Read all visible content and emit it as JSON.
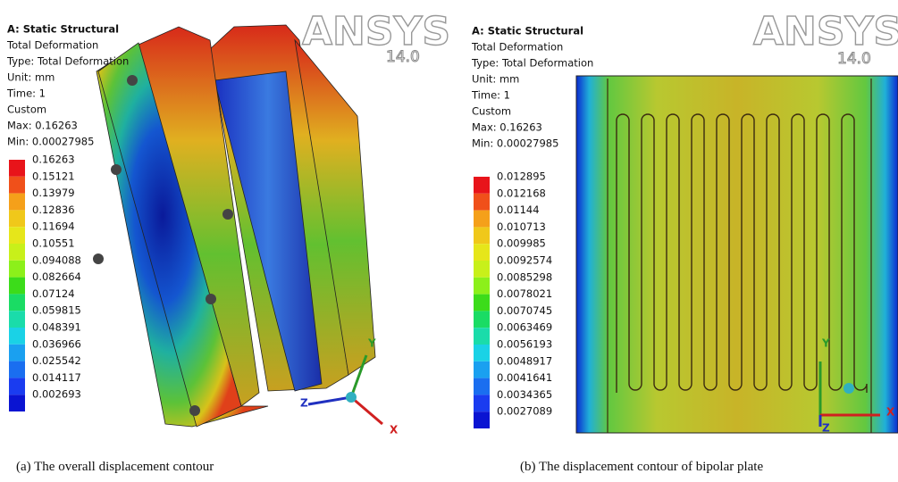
{
  "panels": [
    {
      "header": [
        "A: Static Structural",
        "Total Deformation",
        "Type: Total Deformation",
        "Unit: mm",
        "Time: 1",
        "Custom",
        "Max: 0.16263",
        "Min: 0.00027985"
      ],
      "legend": [
        "0.16263",
        "0.15121",
        "0.13979",
        "0.12836",
        "0.11694",
        "0.10551",
        "0.094088",
        "0.082664",
        "0.07124",
        "0.059815",
        "0.048391",
        "0.036966",
        "0.025542",
        "0.014117",
        "0.002693"
      ],
      "logo": "ANSYS",
      "version": "14.0",
      "axes": [
        "Y",
        "Z",
        "X"
      ],
      "caption": "(a) The overall displacement contour"
    },
    {
      "header": [
        "A: Static Structural",
        "Total Deformation",
        "Type: Total Deformation",
        "Unit: mm",
        "Time: 1",
        "Custom",
        "Max: 0.16263",
        "Min: 0.00027985"
      ],
      "legend": [
        "0.012895",
        "0.012168",
        "0.01144",
        "0.010713",
        "0.009985",
        "0.0092574",
        "0.0085298",
        "0.0078021",
        "0.0070745",
        "0.0063469",
        "0.0056193",
        "0.0048917",
        "0.0041641",
        "0.0034365",
        "0.0027089"
      ],
      "logo": "ANSYS",
      "version": "14.0",
      "axes": [
        "Y",
        "Z",
        "X"
      ],
      "caption": "(b) The displacement contour of bipolar plate"
    }
  ]
}
